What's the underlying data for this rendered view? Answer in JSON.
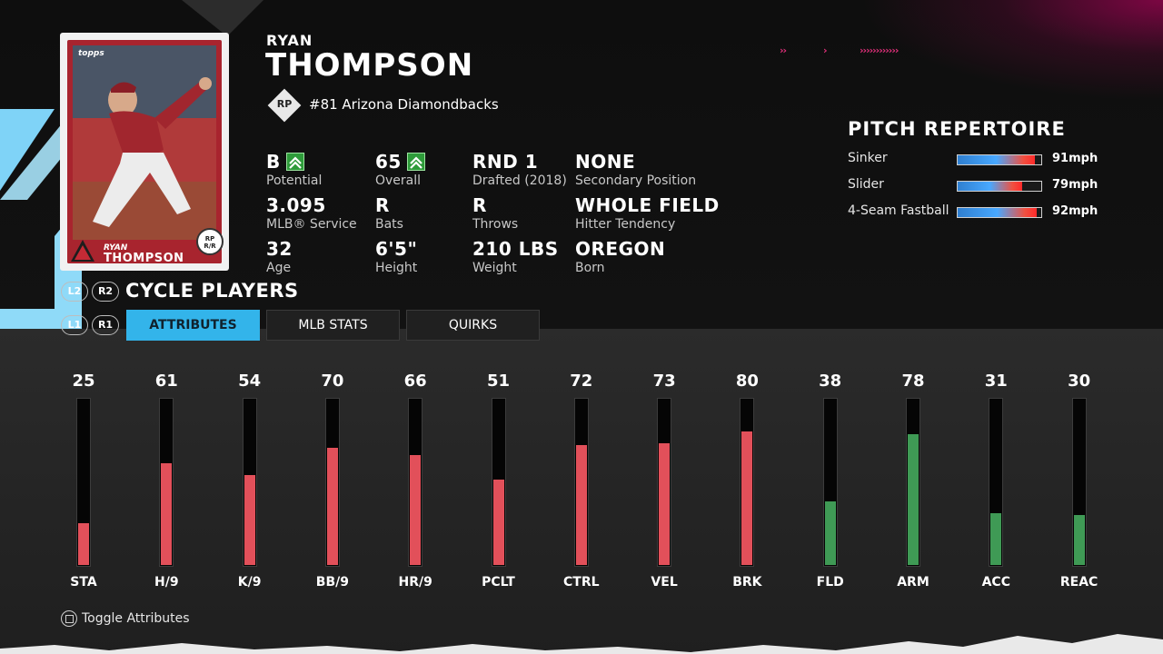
{
  "card": {
    "brand": "topps",
    "first_name": "RYAN",
    "last_name": "THOMPSON",
    "position_line1": "RP",
    "position_line2": "R/R",
    "team_color": "#a8242e"
  },
  "player": {
    "first_name": "RYAN",
    "last_name": "THOMPSON",
    "position": "RP",
    "team_line": "#81 Arizona Diamondbacks"
  },
  "info": [
    {
      "value": "B",
      "label": "Potential",
      "upgrade": true
    },
    {
      "value": "65",
      "label": "Overall",
      "upgrade": true
    },
    {
      "value": "RND 1",
      "label": "Drafted (2018)"
    },
    {
      "value": "NONE",
      "label": "Secondary Position"
    },
    {
      "value": "3.095",
      "label": "MLB® Service"
    },
    {
      "value": "R",
      "label": "Bats"
    },
    {
      "value": "R",
      "label": "Throws"
    },
    {
      "value": "WHOLE FIELD",
      "label": "Hitter Tendency"
    },
    {
      "value": "32",
      "label": "Age"
    },
    {
      "value": "6'5\"",
      "label": "Height"
    },
    {
      "value": "210 LBS",
      "label": "Weight"
    },
    {
      "value": "OREGON",
      "label": "Born"
    }
  ],
  "cycle": {
    "left_button": "L2",
    "right_button": "R2",
    "label": "CYCLE PLAYERS"
  },
  "tabs": {
    "left_button": "L1",
    "right_button": "R1",
    "items": [
      {
        "label": "ATTRIBUTES",
        "active": true
      },
      {
        "label": "MLB STATS",
        "active": false
      },
      {
        "label": "QUIRKS",
        "active": false
      }
    ]
  },
  "pitches": {
    "title": "PITCH REPERTOIRE",
    "items": [
      {
        "name": "Sinker",
        "speed": "91mph",
        "fill": 0.92
      },
      {
        "name": "Slider",
        "speed": "79mph",
        "fill": 0.77
      },
      {
        "name": "4-Seam Fastball",
        "speed": "92mph",
        "fill": 0.95
      }
    ]
  },
  "attributes": [
    {
      "label": "STA",
      "value": 25,
      "color": "#e2505a"
    },
    {
      "label": "H/9",
      "value": 61,
      "color": "#e2505a"
    },
    {
      "label": "K/9",
      "value": 54,
      "color": "#e2505a"
    },
    {
      "label": "BB/9",
      "value": 70,
      "color": "#e2505a"
    },
    {
      "label": "HR/9",
      "value": 66,
      "color": "#e2505a"
    },
    {
      "label": "PCLT",
      "value": 51,
      "color": "#e2505a"
    },
    {
      "label": "CTRL",
      "value": 72,
      "color": "#e2505a"
    },
    {
      "label": "VEL",
      "value": 73,
      "color": "#e2505a"
    },
    {
      "label": "BRK",
      "value": 80,
      "color": "#e2505a"
    },
    {
      "label": "FLD",
      "value": 38,
      "color": "#3f9a55"
    },
    {
      "label": "ARM",
      "value": 78,
      "color": "#3f9a55"
    },
    {
      "label": "ACC",
      "value": 31,
      "color": "#3f9a55"
    },
    {
      "label": "REAC",
      "value": 30,
      "color": "#3f9a55"
    }
  ],
  "footer": {
    "toggle_icon": "square-button-icon",
    "toggle_label": "Toggle Attributes"
  },
  "colors": {
    "accent": "#33b4ea",
    "upgrade": "#2e9b3a"
  }
}
